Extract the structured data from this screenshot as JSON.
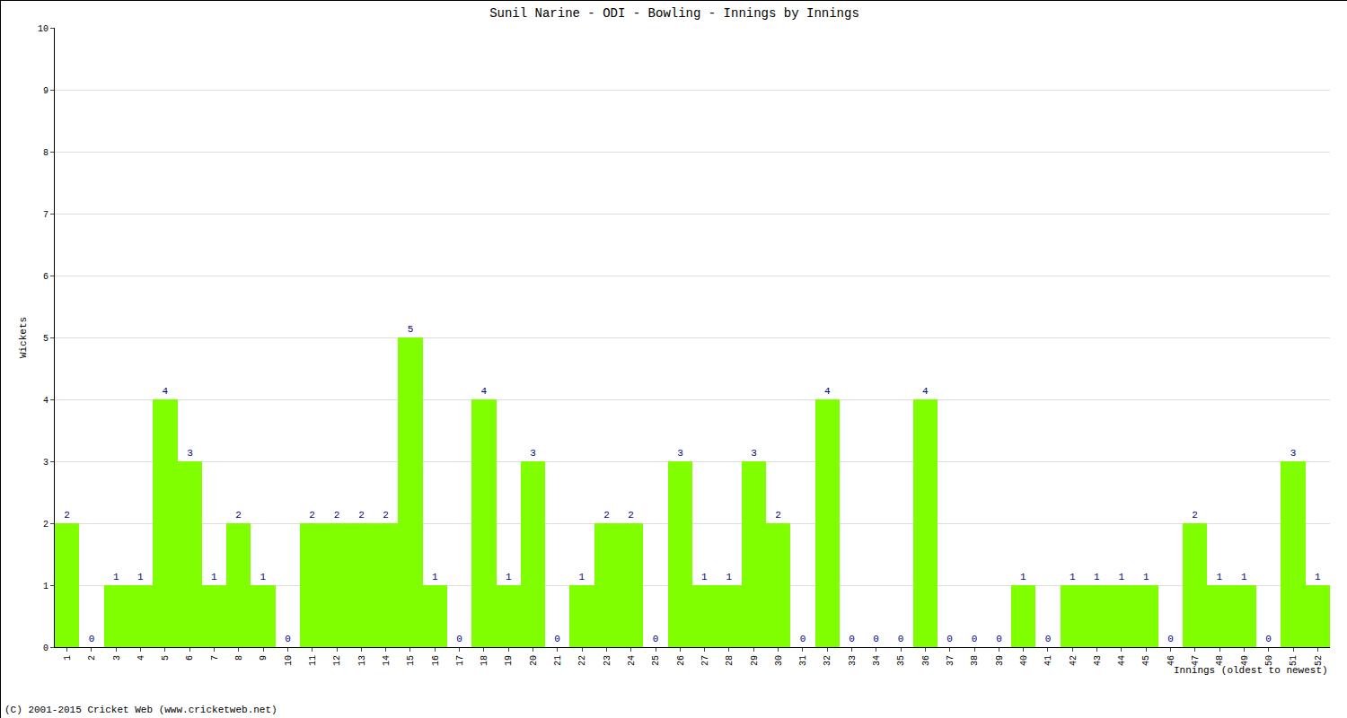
{
  "chart_data": {
    "type": "bar",
    "title": "Sunil Narine - ODI - Bowling - Innings by Innings",
    "x_label": "Innings (oldest to newest)",
    "y_label": "Wickets",
    "footer": "(C) 2001-2015 Cricket Web (www.cricketweb.net)",
    "categories": [
      "1",
      "2",
      "3",
      "4",
      "5",
      "6",
      "7",
      "8",
      "9",
      "10",
      "11",
      "12",
      "13",
      "14",
      "15",
      "16",
      "17",
      "18",
      "19",
      "20",
      "21",
      "22",
      "23",
      "24",
      "25",
      "26",
      "27",
      "28",
      "29",
      "30",
      "31",
      "32",
      "33",
      "34",
      "35",
      "36",
      "37",
      "38",
      "39",
      "40",
      "41",
      "42",
      "43",
      "44",
      "45",
      "46",
      "47",
      "48",
      "49",
      "50",
      "51",
      "52"
    ],
    "values": [
      2,
      0,
      1,
      1,
      4,
      3,
      1,
      2,
      1,
      0,
      2,
      2,
      2,
      2,
      5,
      1,
      0,
      4,
      1,
      3,
      0,
      1,
      2,
      2,
      0,
      3,
      1,
      1,
      3,
      2,
      0,
      4,
      0,
      0,
      0,
      4,
      0,
      0,
      0,
      1,
      0,
      1,
      1,
      1,
      1,
      0,
      2,
      1,
      1,
      0,
      3,
      1
    ],
    "color": "#80ff00",
    "ylim": [
      0,
      10
    ],
    "yticks": [
      0,
      1,
      2,
      3,
      4,
      5,
      6,
      7,
      8,
      9,
      10
    ],
    "grid": true,
    "data_labels": true
  }
}
